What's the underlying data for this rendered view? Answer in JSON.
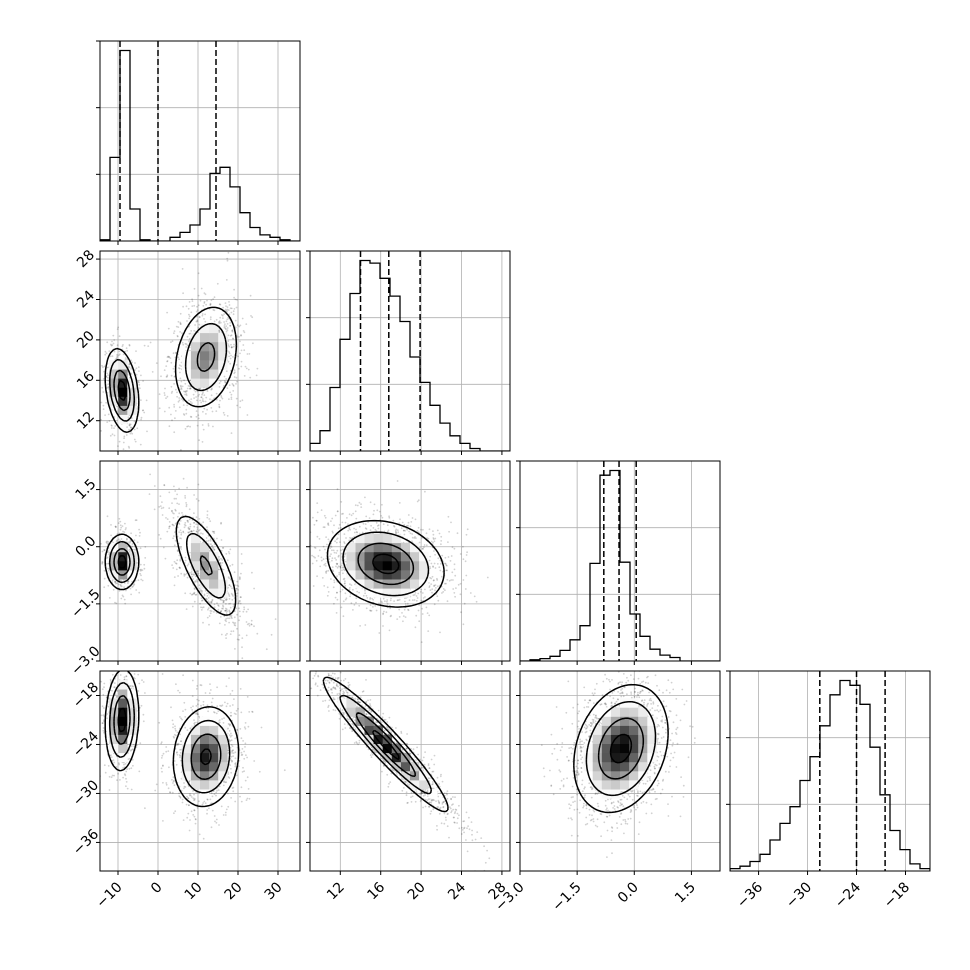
{
  "chart_data": {
    "type": "corner",
    "grid": true,
    "variables": [
      {
        "ticks": [
          "−10",
          "0",
          "10",
          "20",
          "30"
        ],
        "tick_values": [
          -10,
          0,
          10,
          20,
          30
        ],
        "range": [
          -14.5,
          35.5
        ],
        "quantiles": [
          -9.5,
          0,
          14.5
        ],
        "hist": [
          1,
          68,
          155,
          26,
          1,
          0,
          0,
          3,
          7,
          13,
          26,
          55,
          60,
          44,
          23,
          11,
          5,
          3,
          1,
          0
        ]
      },
      {
        "ticks": [
          "12",
          "16",
          "20",
          "24",
          "28"
        ],
        "tick_values": [
          12,
          16,
          20,
          24,
          28
        ],
        "range": [
          9.0,
          28.8
        ],
        "quantiles": [
          14.0,
          16.8,
          19.9
        ],
        "hist": [
          3,
          8,
          25,
          44,
          62,
          75,
          74,
          68,
          61,
          51,
          37,
          27,
          18,
          11,
          6,
          3,
          1,
          0,
          0,
          0
        ]
      },
      {
        "ticks": [
          "−3.0",
          "−1.5",
          "0.0",
          "1.5"
        ],
        "tick_values": [
          -3.0,
          -1.5,
          0.0,
          1.5
        ],
        "range": [
          -3.0,
          2.25
        ],
        "quantiles": [
          -0.8,
          -0.4,
          0.05
        ],
        "hist": [
          0,
          1,
          2,
          4,
          9,
          18,
          30,
          83,
          158,
          162,
          84,
          40,
          21,
          10,
          5,
          3,
          0,
          0,
          0,
          0
        ]
      },
      {
        "ticks": [
          "−36",
          "−30",
          "−24",
          "−18"
        ],
        "tick_values": [
          -36,
          -30,
          -24,
          -18
        ],
        "range": [
          -39.5,
          -15.0
        ],
        "quantiles": [
          -28.5,
          -24.0,
          -20.5
        ],
        "hist": [
          1,
          2,
          4,
          7,
          13,
          20,
          27,
          38,
          48,
          61,
          74,
          80,
          78,
          70,
          52,
          32,
          17,
          9,
          3,
          1
        ]
      }
    ],
    "correlations": {
      "1,0": {
        "clusters": [
          {
            "mx": -9,
            "my": 15,
            "sx": 2.0,
            "sy": 2.0,
            "r": -0.3,
            "w": 0.35
          },
          {
            "mx": 12,
            "my": 18.3,
            "sx": 4.0,
            "sy": 2.6,
            "r": 0.25,
            "w": 0.65
          }
        ]
      },
      "2,0": {
        "clusters": [
          {
            "mx": -9,
            "my": -0.4,
            "sx": 2.0,
            "sy": 0.35,
            "r": 0.0,
            "w": 0.35
          },
          {
            "mx": 12,
            "my": -0.5,
            "sx": 4.0,
            "sy": 0.7,
            "r": -0.7,
            "w": 0.65
          }
        ]
      },
      "2,1": {
        "clusters": [
          {
            "mx": 16.5,
            "my": -0.45,
            "sx": 2.8,
            "sy": 0.55,
            "r": -0.2,
            "w": 1.0
          }
        ]
      },
      "3,0": {
        "clusters": [
          {
            "mx": -9,
            "my": -21,
            "sx": 2.0,
            "sy": 3.0,
            "r": 0.1,
            "w": 0.35
          },
          {
            "mx": 12,
            "my": -25.5,
            "sx": 4.0,
            "sy": 3.0,
            "r": 0.1,
            "w": 0.65
          }
        ]
      },
      "3,1": {
        "clusters": [
          {
            "mx": 16.5,
            "my": -24,
            "sx": 3.0,
            "sy": 4.0,
            "r": -0.95,
            "w": 1.0
          }
        ]
      },
      "3,2": {
        "clusters": [
          {
            "mx": -0.35,
            "my": -24.5,
            "sx": 0.6,
            "sy": 3.8,
            "r": 0.25,
            "w": 1.0
          }
        ]
      }
    }
  }
}
